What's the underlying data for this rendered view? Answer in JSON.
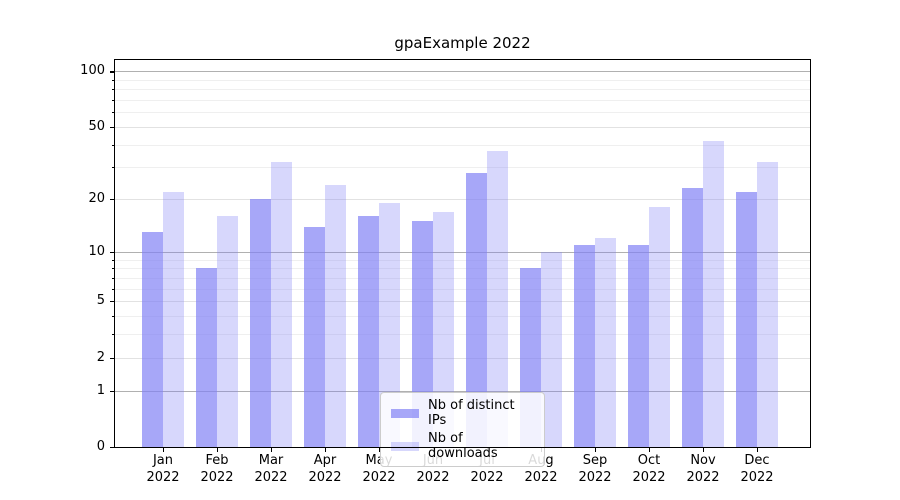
{
  "title": "gpaExample 2022",
  "chart_data": {
    "type": "bar",
    "title": "gpaExample 2022",
    "categories": [
      "Jan",
      "Feb",
      "Mar",
      "Apr",
      "May",
      "Jun",
      "Jul",
      "Aug",
      "Sep",
      "Oct",
      "Nov",
      "Dec"
    ],
    "year": "2022",
    "series": [
      {
        "name": "Nb of distinct IPs",
        "color": "rgba(127,127,245,0.69)",
        "values": [
          13,
          8,
          20,
          14,
          16,
          15,
          28,
          8,
          11,
          11,
          23,
          22
        ]
      },
      {
        "name": "Nb of downloads",
        "color": "rgba(127,127,245,0.31)",
        "values": [
          22,
          16,
          32,
          24,
          19,
          17,
          37,
          10,
          12,
          18,
          42,
          32
        ]
      }
    ],
    "yscale": "log10(value+1)",
    "ylim": [
      0,
      115
    ],
    "y_tick_labels": [
      "100",
      "50",
      "20",
      "10",
      "5",
      "2",
      "1",
      "0"
    ],
    "y_tick_values": [
      100,
      50,
      20,
      10,
      5,
      2,
      1,
      0
    ],
    "y_decade_values": [
      100,
      10,
      1
    ],
    "y_minor_gridlines": [
      90,
      80,
      70,
      60,
      40,
      30,
      9,
      8,
      7,
      6,
      4,
      3
    ],
    "grid": true,
    "legend_position": "lower center",
    "colors": {
      "bar_dark_flat": "#a7a7f8",
      "bar_light_flat": "#d8d8fb",
      "grid_decade": "#b0b0b0",
      "grid_major": "#e2e2e2",
      "grid_minor": "#efefef",
      "axis": "#000000",
      "legend_border": "#cccccc"
    }
  }
}
